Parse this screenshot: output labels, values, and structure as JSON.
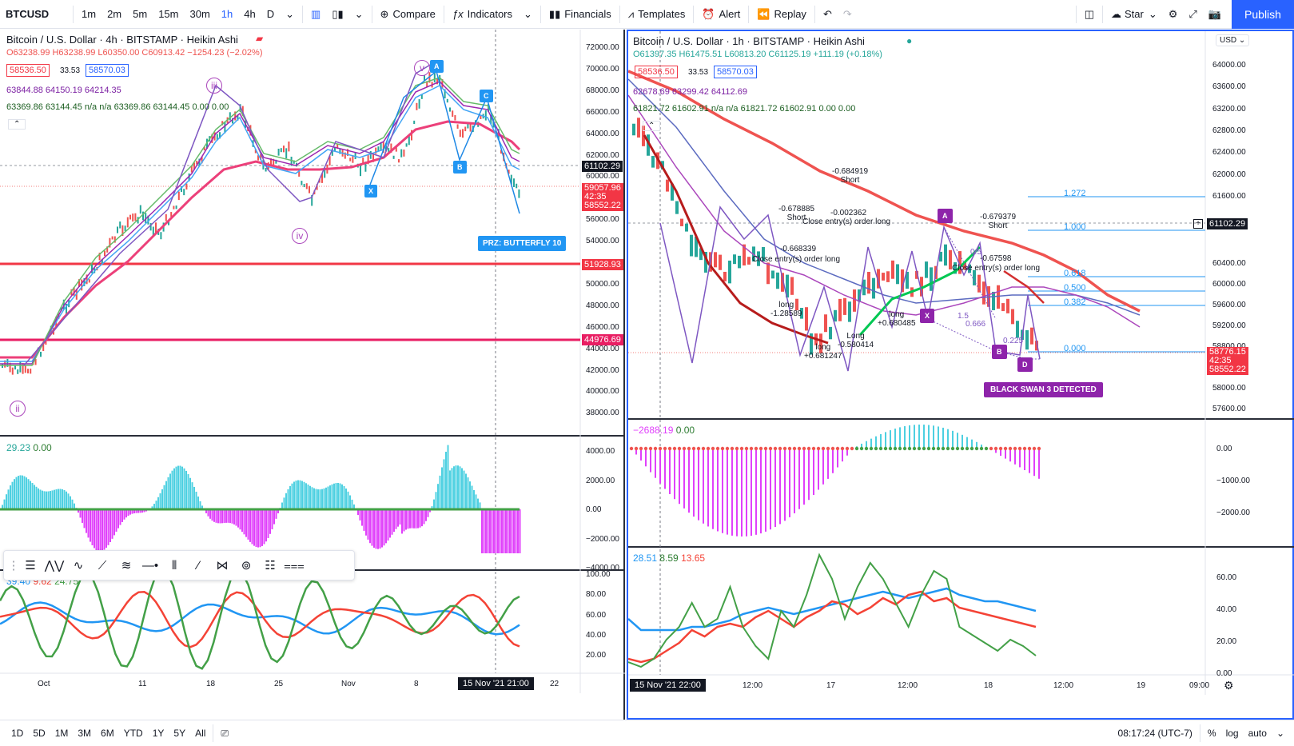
{
  "toolbar": {
    "symbol": "BTCUSD",
    "intervals": [
      "1m",
      "2m",
      "5m",
      "15m",
      "30m",
      "1h",
      "4h",
      "D"
    ],
    "active_interval": "1h",
    "compare": "Compare",
    "indicators": "Indicators",
    "financials": "Financials",
    "templates": "Templates",
    "alert": "Alert",
    "replay": "Replay",
    "star": "Star",
    "publish": "Publish"
  },
  "left": {
    "title": "Bitcoin / U.S. Dollar · 4h · BITSTAMP · Heikin Ashi",
    "ohlc": "O63238.99 H63238.99 L60350.00 C60913.42 −1254.23 (−2.02%)",
    "bid": "58536.50",
    "spread": "33.53",
    "ask": "58570.03",
    "ma1": "63844.88  64150.19  64214.35",
    "ma2": "63369.86  63144.45  n/a  n/a  63369.86  63144.45  0.00  0.00",
    "osc_legend_a": "29.23",
    "osc_legend_b": "0.00",
    "stoch_a": "39.40",
    "stoch_b": "9.62",
    "stoch_c": "24.75",
    "price_axis": [
      "72000.00",
      "70000.00",
      "68000.00",
      "66000.00",
      "64000.00",
      "62000.00",
      "60000.00",
      "58000.00",
      "56000.00",
      "54000.00",
      "52000.00",
      "50000.00",
      "48000.00",
      "46000.00",
      "44000.00",
      "42000.00",
      "40000.00",
      "38000.00"
    ],
    "osc_axis": [
      "4000.00",
      "2000.00",
      "0.00",
      "−2000.00",
      "−4000.00"
    ],
    "stoch_axis": [
      "100.00",
      "80.00",
      "60.00",
      "40.00",
      "20.00"
    ],
    "time_axis": [
      "Oct",
      "11",
      "18",
      "25",
      "Nov",
      "8",
      "22"
    ],
    "cursor_time": "15 Nov '21   21:00",
    "price_last": "61102.29",
    "price_a": "59057.96",
    "price_b": "42:35",
    "price_c": "58552.22",
    "line_red1": "51928.93",
    "line_red2": "44976.69",
    "prz": "PRZ: BUTTERFLY 10",
    "waves": [
      "ii",
      "iii",
      "iv",
      "v"
    ],
    "pattern_pts": [
      "A",
      "B",
      "C",
      "X"
    ]
  },
  "right": {
    "title": "Bitcoin / U.S. Dollar · 1h · BITSTAMP · Heikin Ashi",
    "ohlc": "O61397.35 H61475.51 L60813.20 C61125.19 +111.19 (+0.18%)",
    "bid": "58536.50",
    "spread": "33.53",
    "ask": "58570.03",
    "ma1": "62678.69  63299.42  64112.69",
    "ma2": "61821.72  61602.91  n/a  n/a  61821.72  61602.91  0.00  0.00",
    "currency": "USD",
    "price_axis": [
      "64000.00",
      "63600.00",
      "63200.00",
      "62800.00",
      "62400.00",
      "62000.00",
      "61600.00",
      "60400.00",
      "60000.00",
      "59600.00",
      "59200.00",
      "58800.00",
      "58400.00",
      "58000.00",
      "57600.00"
    ],
    "price_last": "61102.29",
    "price_a": "58776.15",
    "price_b": "42:35",
    "price_c": "58552.22",
    "fib": [
      {
        "r": "1.272"
      },
      {
        "r": "1.000"
      },
      {
        "r": "0.618"
      },
      {
        "r": "0.500"
      },
      {
        "r": "0.382"
      },
      {
        "r": "0.000"
      }
    ],
    "annotations": [
      "-0.684919",
      "Short",
      "-0.678885",
      "Short",
      "Close entry(s) order long",
      "-0.002362",
      "-0.668339",
      "Close entry(s) order long",
      "-0.679379",
      "Short",
      "Close entry(s) order long",
      "-0.67598",
      "long",
      "-1.28589",
      "long",
      "+0.681247",
      "Long",
      "-0.580414",
      "long",
      "+0.680485",
      "1.5",
      "0.5",
      "0.666",
      "0.225"
    ],
    "pattern_pts": [
      "A",
      "X",
      "B",
      "D"
    ],
    "black_swan": "BLACK SWAN 3 DETECTED",
    "osc_legend_a": "−2688.19",
    "osc_legend_b": "0.00",
    "osc_axis": [
      "0.00",
      "−1000.00",
      "−2000.00"
    ],
    "stoch_a": "28.51",
    "stoch_b": "8.59",
    "stoch_c": "13.65",
    "stoch_axis": [
      "60.00",
      "40.00",
      "20.00",
      "0.00"
    ],
    "time_axis": [
      "12:00",
      "17",
      "12:00",
      "18",
      "12:00",
      "19",
      "09:00"
    ],
    "cursor_time": "15 Nov '21   22:00"
  },
  "bottom": {
    "ranges": [
      "1D",
      "5D",
      "1M",
      "3M",
      "6M",
      "YTD",
      "1Y",
      "5Y",
      "All"
    ],
    "clock": "08:17:24 (UTC-7)",
    "pct": "%",
    "log": "log",
    "auto": "auto"
  },
  "colors": {
    "up": "#26a69a",
    "down": "#ef5350",
    "blue": "#2962ff",
    "ma_pink": "#e91e63",
    "purple": "#9c27b0"
  }
}
